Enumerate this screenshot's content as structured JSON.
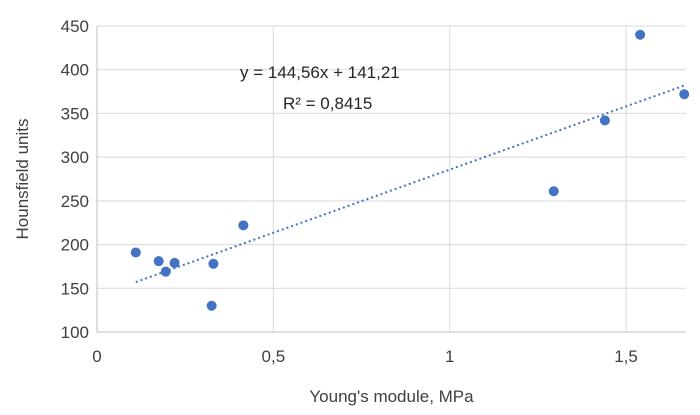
{
  "chart_data": {
    "type": "scatter",
    "xlabel": "Young's module, MPa",
    "ylabel": "Hounsfield units",
    "xlim": [
      0,
      1.67
    ],
    "ylim": [
      100,
      450
    ],
    "x_ticks": [
      0,
      0.5,
      1,
      1.5
    ],
    "x_tick_labels": [
      "0",
      "0,5",
      "1",
      "1,5"
    ],
    "y_ticks": [
      100,
      150,
      200,
      250,
      300,
      350,
      400,
      450
    ],
    "y_tick_labels": [
      "100",
      "150",
      "200",
      "250",
      "300",
      "350",
      "400",
      "450"
    ],
    "grid": true,
    "series": [
      {
        "points": [
          {
            "x": 0.11,
            "y": 191
          },
          {
            "x": 0.175,
            "y": 181
          },
          {
            "x": 0.195,
            "y": 169
          },
          {
            "x": 0.22,
            "y": 179
          },
          {
            "x": 0.325,
            "y": 130
          },
          {
            "x": 0.33,
            "y": 178
          },
          {
            "x": 0.415,
            "y": 222
          },
          {
            "x": 1.295,
            "y": 261
          },
          {
            "x": 1.44,
            "y": 342
          },
          {
            "x": 1.54,
            "y": 440
          },
          {
            "x": 1.665,
            "y": 372
          }
        ]
      }
    ],
    "trendline": {
      "type": "linear",
      "slope": 144.56,
      "intercept": 141.21,
      "x_range": [
        0.11,
        1.665
      ],
      "equation_label": "y = 144,56x + 141,21",
      "r2_label": "R² = 0,8415"
    },
    "colors": {
      "marker": "#4472C4",
      "trendline": "#4472C4",
      "grid": "#d9d9d9",
      "text": "#404040"
    }
  }
}
